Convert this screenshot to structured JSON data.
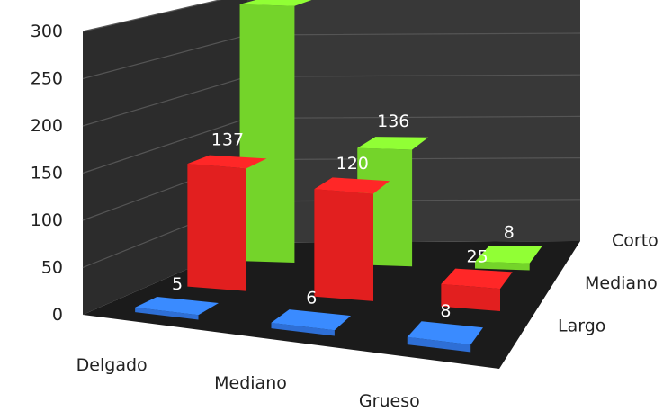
{
  "chart_data": {
    "type": "bar",
    "categories": [
      "Delgado",
      "Mediano",
      "Grueso"
    ],
    "series": [
      {
        "name": "Largo",
        "values": [
          5,
          6,
          8
        ],
        "color": "#2E6FD6"
      },
      {
        "name": "Mediano",
        "values": [
          137,
          120,
          25
        ],
        "color": "#E21F1F"
      },
      {
        "name": "Corto",
        "values": [
          299,
          136,
          8
        ],
        "color": "#74D42A"
      }
    ],
    "yticks": [
      "0",
      "50",
      "100",
      "150",
      "200",
      "250",
      "300"
    ],
    "ylim": [
      0,
      300
    ],
    "title": "",
    "xlabel": "",
    "ylabel": "",
    "grid": true,
    "three_d": true
  }
}
